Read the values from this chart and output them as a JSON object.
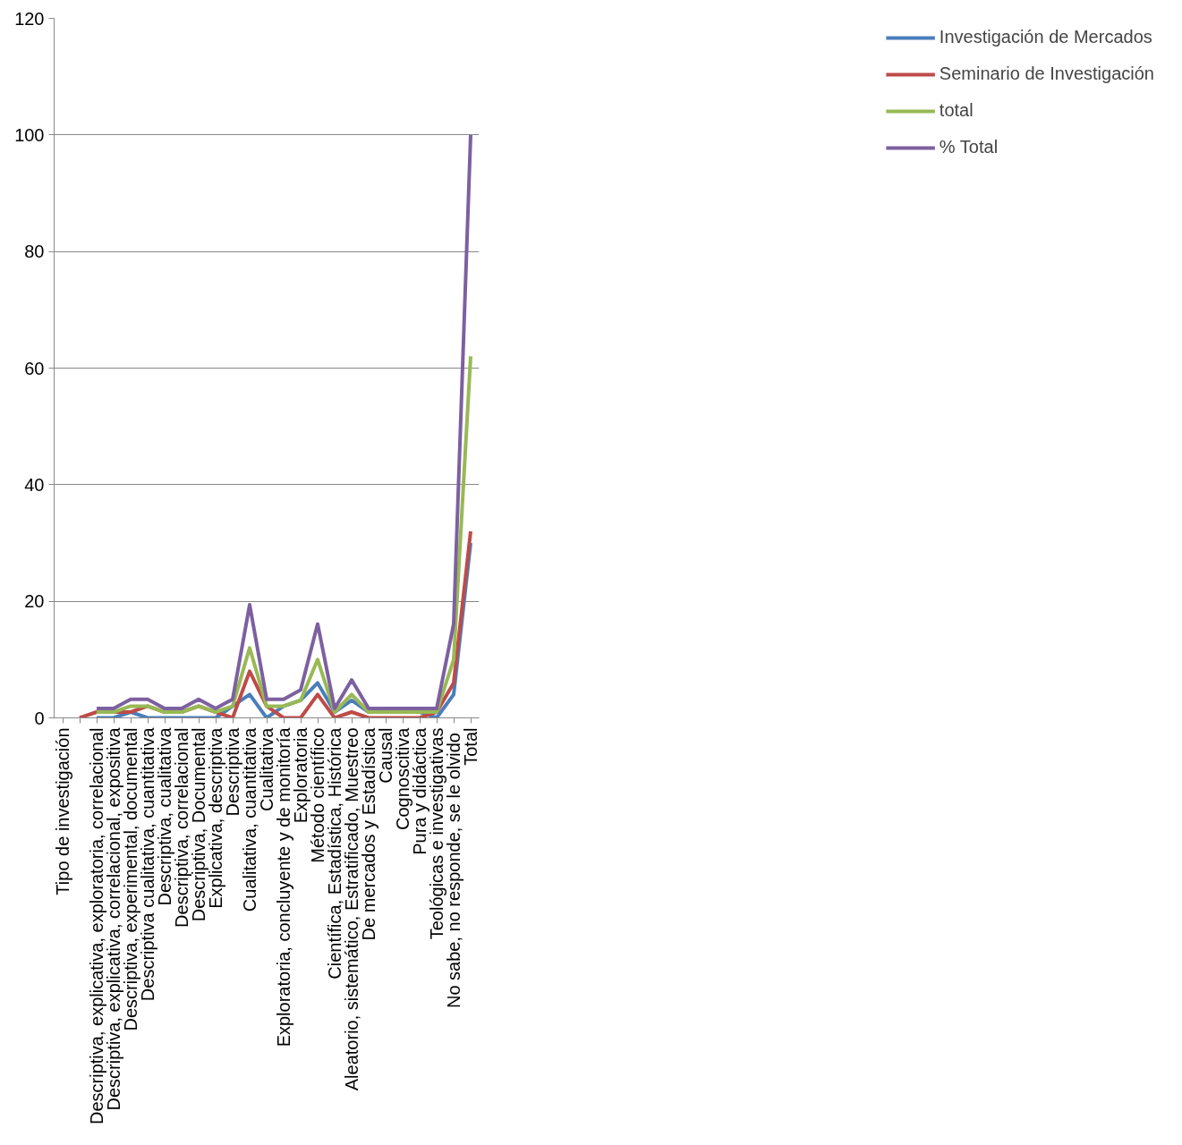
{
  "chart_data": {
    "type": "line",
    "categories": [
      "Tipo de investigación",
      null,
      "Descriptiva, explicativa, exploratoria, correlacional",
      "Descriptiva, explicativa, correlacional, expositiva",
      "Descriptiva, experimental, documental",
      "Descriptiva cualitativa, cuantitativa",
      "Descriptiva, cualitativa",
      "Descriptiva, correlacional",
      "Descriptiva, Documental",
      "Explicativa, descriptiva",
      "Descriptiva",
      "Cualitativa, cuantitativa",
      "Cualitativa",
      "Exploratoria, concluyente y de monitoría",
      "Exploratoria",
      "Método científico",
      "Científica, Estadística, Histórica",
      "Aleatorio, sistemático, Estratificado, Muestreo",
      "De mercados y Estadística",
      "Causal",
      "Cognoscitiva",
      "Pura y didáctica",
      "Teológicas e investigativas",
      "No sabe, no responde, se  le olvido",
      "Total"
    ],
    "series": [
      {
        "name": "Investigación de Mercados",
        "color": "#4a7ebb",
        "values": [
          null,
          null,
          0,
          0,
          1,
          0,
          0,
          0,
          0,
          0,
          2,
          4,
          0,
          2,
          3,
          6,
          1,
          3,
          1,
          1,
          1,
          1,
          0,
          4,
          30
        ]
      },
      {
        "name": "Seminario de Investigación",
        "color": "#be4b48",
        "values": [
          null,
          0,
          1,
          1,
          1,
          2,
          1,
          1,
          2,
          1,
          0,
          8,
          2,
          0,
          0,
          4,
          0,
          1,
          0,
          0,
          0,
          0,
          1,
          6,
          32
        ]
      },
      {
        "name": "total",
        "color": "#98b954",
        "values": [
          null,
          null,
          1,
          1,
          2,
          2,
          1,
          1,
          2,
          1,
          2,
          12,
          2,
          2,
          3,
          10,
          1,
          4,
          1,
          1,
          1,
          1,
          1,
          10,
          62
        ]
      },
      {
        "name": "% Total",
        "color": "#7d60a0",
        "values": [
          null,
          null,
          1.6,
          1.6,
          3.2,
          3.2,
          1.6,
          1.6,
          3.2,
          1.6,
          3.2,
          19.4,
          3.2,
          3.2,
          4.8,
          16.1,
          1.6,
          6.5,
          1.6,
          1.6,
          1.6,
          1.6,
          1.6,
          16.1,
          100
        ]
      }
    ],
    "ylim": [
      0,
      120
    ],
    "yticks": [
      0,
      20,
      40,
      60,
      80,
      100,
      120
    ],
    "grid": "y",
    "legend": "right",
    "marker": "none",
    "line_style": "solid"
  }
}
